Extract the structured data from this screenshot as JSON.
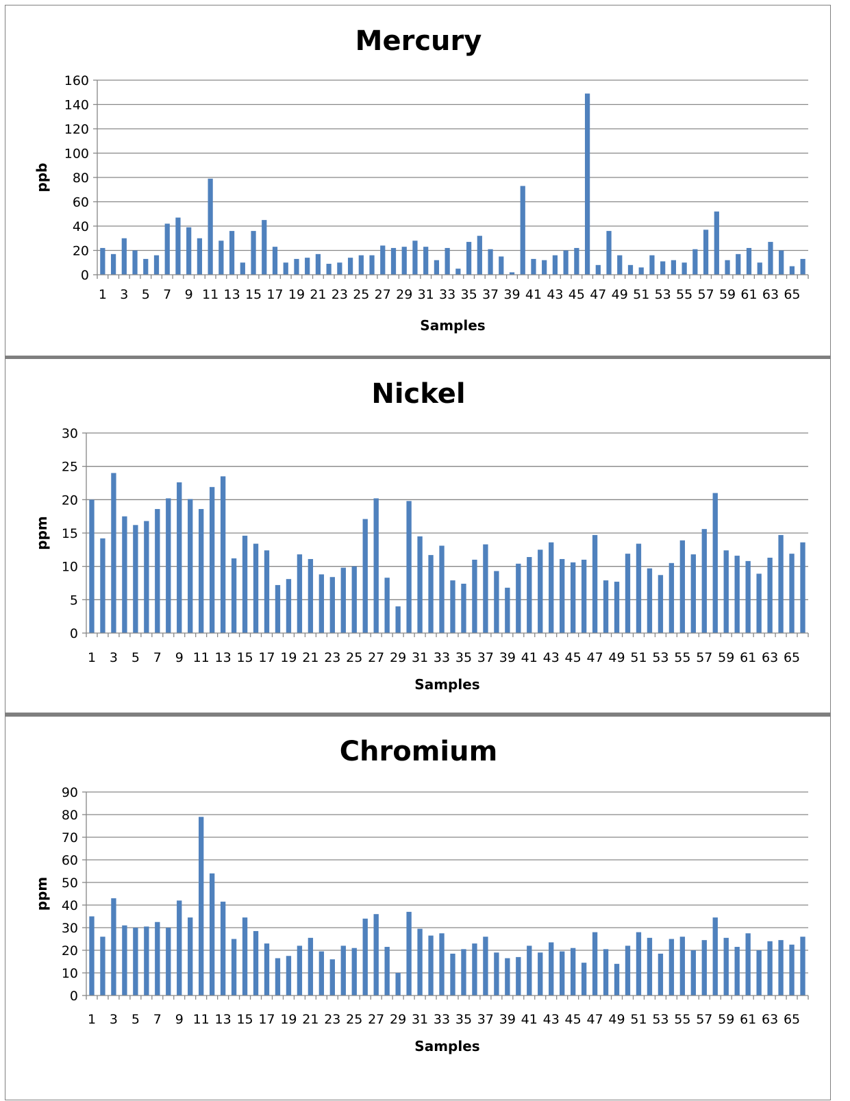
{
  "colors": {
    "bar": "#4f81bd",
    "grid": "#868686",
    "border": "#7f7f7f"
  },
  "chart_data": [
    {
      "type": "bar",
      "title": "Mercury",
      "xlabel": "Samples",
      "ylabel": "ppb",
      "ylim": [
        0,
        160
      ],
      "yticks": [
        0,
        20,
        40,
        60,
        80,
        100,
        120,
        140,
        160
      ],
      "xtick_labels": [
        "1",
        "3",
        "5",
        "7",
        "9",
        "11",
        "13",
        "15",
        "17",
        "19",
        "21",
        "23",
        "25",
        "27",
        "29",
        "31",
        "33",
        "35",
        "37",
        "39",
        "41",
        "43",
        "45",
        "47",
        "49",
        "51",
        "53",
        "55",
        "57",
        "59",
        "61",
        "63",
        "65"
      ],
      "grid": true,
      "legend": "none",
      "categories": [
        1,
        2,
        3,
        4,
        5,
        6,
        7,
        8,
        9,
        10,
        11,
        12,
        13,
        14,
        15,
        16,
        17,
        18,
        19,
        20,
        21,
        22,
        23,
        24,
        25,
        26,
        27,
        28,
        29,
        30,
        31,
        32,
        33,
        34,
        35,
        36,
        37,
        38,
        39,
        40,
        41,
        42,
        43,
        44,
        45,
        46,
        47,
        48,
        49,
        50,
        51,
        52,
        53,
        54,
        55,
        56,
        57,
        58,
        59,
        60,
        61,
        62,
        63,
        64,
        65,
        66
      ],
      "values": [
        22,
        17,
        30,
        20,
        13,
        16,
        42,
        47,
        39,
        30,
        79,
        28,
        36,
        10,
        36,
        45,
        23,
        10,
        13,
        14,
        17,
        9,
        10,
        14,
        16,
        16,
        24,
        22,
        23,
        28,
        23,
        12,
        22,
        5,
        27,
        32,
        21,
        15,
        2,
        73,
        13,
        12,
        16,
        20,
        22,
        149,
        8,
        36,
        16,
        8,
        6,
        16,
        11,
        12,
        10,
        21,
        37,
        52,
        12,
        17,
        22,
        10,
        27,
        20,
        7,
        13
      ]
    },
    {
      "type": "bar",
      "title": "Nickel",
      "xlabel": "Samples",
      "ylabel": "ppm",
      "ylim": [
        0,
        30
      ],
      "yticks": [
        0,
        5,
        10,
        15,
        20,
        25,
        30
      ],
      "xtick_labels": [
        "1",
        "3",
        "5",
        "7",
        "9",
        "11",
        "13",
        "15",
        "17",
        "19",
        "21",
        "23",
        "25",
        "27",
        "29",
        "31",
        "33",
        "35",
        "37",
        "39",
        "41",
        "43",
        "45",
        "47",
        "49",
        "51",
        "53",
        "55",
        "57",
        "59",
        "61",
        "63",
        "65"
      ],
      "grid": true,
      "legend": "none",
      "categories": [
        1,
        2,
        3,
        4,
        5,
        6,
        7,
        8,
        9,
        10,
        11,
        12,
        13,
        14,
        15,
        16,
        17,
        18,
        19,
        20,
        21,
        22,
        23,
        24,
        25,
        26,
        27,
        28,
        29,
        30,
        31,
        32,
        33,
        34,
        35,
        36,
        37,
        38,
        39,
        40,
        41,
        42,
        43,
        44,
        45,
        46,
        47,
        48,
        49,
        50,
        51,
        52,
        53,
        54,
        55,
        56,
        57,
        58,
        59,
        60,
        61,
        62,
        63,
        64,
        65,
        66
      ],
      "values": [
        20,
        14.2,
        24,
        17.5,
        16.2,
        16.8,
        18.6,
        20.2,
        22.6,
        20.1,
        18.6,
        21.9,
        23.5,
        11.2,
        14.6,
        13.4,
        12.4,
        7.2,
        8.1,
        11.8,
        11.1,
        8.8,
        8.4,
        9.8,
        10,
        17.1,
        20.2,
        8.3,
        4.0,
        19.8,
        14.5,
        11.7,
        13.1,
        7.9,
        7.4,
        11,
        13.3,
        9.3,
        6.8,
        10.4,
        11.4,
        12.5,
        13.6,
        11.1,
        10.6,
        11,
        14.7,
        7.9,
        7.7,
        11.9,
        13.4,
        9.7,
        8.7,
        10.5,
        13.9,
        11.8,
        15.6,
        21,
        12.4,
        11.6,
        10.8,
        8.9,
        11.3,
        14.7,
        11.9,
        13.6
      ]
    },
    {
      "type": "bar",
      "title": "Chromium",
      "xlabel": "Samples",
      "ylabel": "ppm",
      "ylim": [
        0,
        90
      ],
      "yticks": [
        0,
        10,
        20,
        30,
        40,
        50,
        60,
        70,
        80,
        90
      ],
      "xtick_labels": [
        "1",
        "3",
        "5",
        "7",
        "9",
        "11",
        "13",
        "15",
        "17",
        "19",
        "21",
        "23",
        "25",
        "27",
        "29",
        "31",
        "33",
        "35",
        "37",
        "39",
        "41",
        "43",
        "45",
        "47",
        "49",
        "51",
        "53",
        "55",
        "57",
        "59",
        "61",
        "63",
        "65"
      ],
      "grid": true,
      "legend": "none",
      "categories": [
        1,
        2,
        3,
        4,
        5,
        6,
        7,
        8,
        9,
        10,
        11,
        12,
        13,
        14,
        15,
        16,
        17,
        18,
        19,
        20,
        21,
        22,
        23,
        24,
        25,
        26,
        27,
        28,
        29,
        30,
        31,
        32,
        33,
        34,
        35,
        36,
        37,
        38,
        39,
        40,
        41,
        42,
        43,
        44,
        45,
        46,
        47,
        48,
        49,
        50,
        51,
        52,
        53,
        54,
        55,
        56,
        57,
        58,
        59,
        60,
        61,
        62,
        63,
        64,
        65,
        66
      ],
      "values": [
        35,
        26,
        43,
        31,
        30,
        30.5,
        32.5,
        30,
        42,
        34.5,
        79,
        54,
        41.5,
        25,
        34.5,
        28.5,
        23,
        16.5,
        17.5,
        22,
        25.5,
        19.5,
        16,
        22,
        21,
        34,
        36,
        21.5,
        10,
        37,
        29.5,
        26.5,
        27.5,
        18.5,
        20.5,
        23,
        26,
        19,
        16.5,
        17,
        22,
        19,
        23.5,
        19.5,
        21,
        14.5,
        28,
        20.5,
        14,
        22,
        28,
        25.5,
        18.5,
        25,
        26,
        20,
        24.5,
        34.5,
        25.5,
        21.5,
        27.5,
        20,
        24,
        24.5,
        22.5,
        26
      ]
    }
  ]
}
